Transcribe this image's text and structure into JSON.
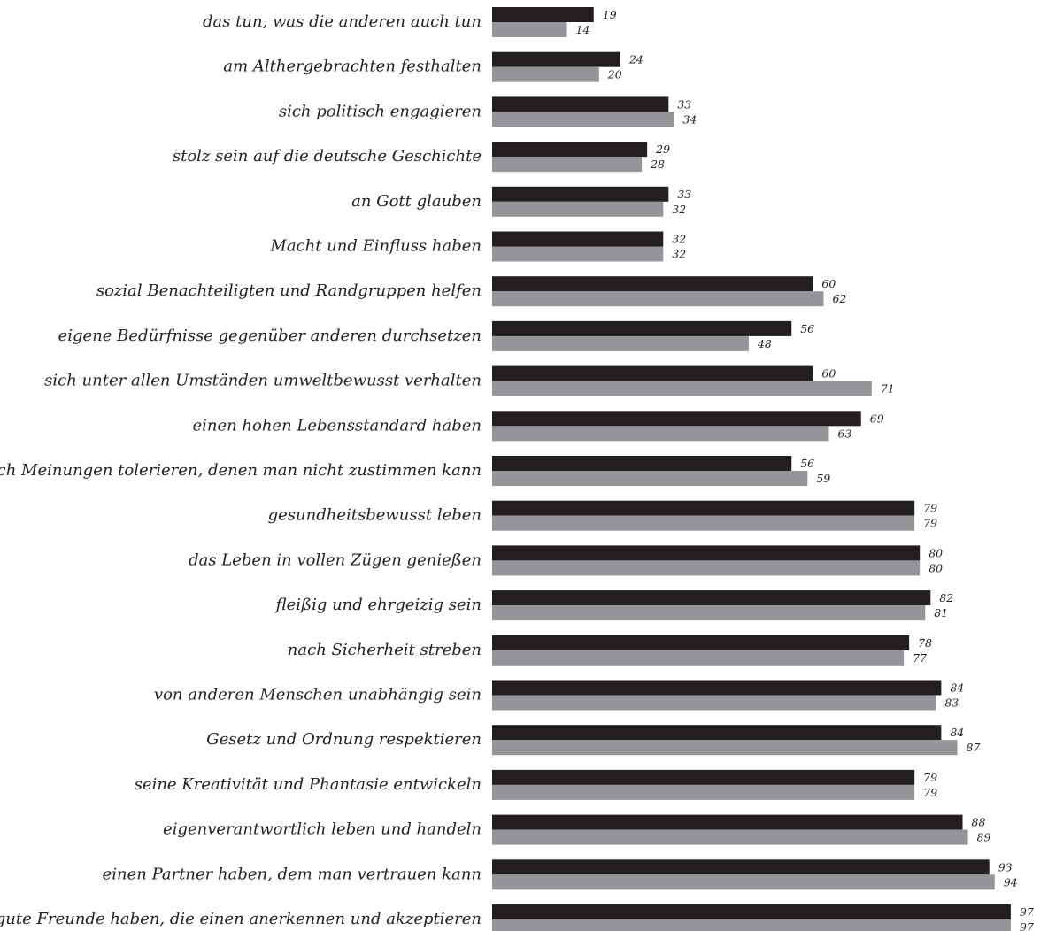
{
  "chart_data": {
    "type": "bar",
    "orientation": "horizontal",
    "title": "",
    "xlabel": "",
    "ylabel": "",
    "xlim": [
      0,
      100
    ],
    "grid": false,
    "legend": "none",
    "categories": [
      "das tun, was die anderen auch tun",
      "am Althergebrachten festhalten",
      "sich politisch engagieren",
      "stolz sein auf die deutsche Geschichte",
      "an Gott glauben",
      "Macht und Einfluss haben",
      "sozial Benachteiligten und Randgruppen helfen",
      "eigene Bedürfnisse gegenüber anderen durchsetzen",
      "sich unter allen Umständen umweltbewusst verhalten",
      "einen hohen Lebensstandard haben",
      "auch Meinungen tolerieren, denen man nicht zustimmen kann",
      "gesundheitsbewusst leben",
      "das Leben in vollen Zügen genießen",
      "fleißig und ehrgeizig sein",
      "nach Sicherheit streben",
      "von anderen Menschen unabhängig sein",
      "Gesetz und Ordnung respektieren",
      "seine Kreativität und Phantasie entwickeln",
      "eigenverantwortlich leben und handeln",
      "einen Partner haben, dem man vertrauen kann",
      "gute Freunde haben, die einen anerkennen und akzeptieren"
    ],
    "series": [
      {
        "color": "#231f20",
        "values": [
          19,
          24,
          33,
          29,
          33,
          32,
          60,
          56,
          60,
          69,
          56,
          79,
          80,
          82,
          78,
          84,
          84,
          79,
          88,
          93,
          97
        ]
      },
      {
        "color": "#939598",
        "values": [
          14,
          20,
          34,
          28,
          32,
          32,
          62,
          48,
          71,
          63,
          59,
          79,
          80,
          81,
          77,
          83,
          87,
          79,
          89,
          94,
          97
        ]
      }
    ]
  }
}
